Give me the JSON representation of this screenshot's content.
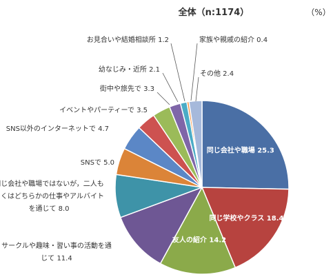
{
  "chart_data": {
    "type": "pie",
    "title": "全体（n:1174）",
    "unit": "（%）",
    "slices": [
      {
        "label": "同じ会社や職場",
        "value": 25.3,
        "color": "#4A6FA5",
        "label_text": "同じ会社や職場 25.3"
      },
      {
        "label": "同じ学校やクラス",
        "value": 18.4,
        "color": "#B7433F",
        "label_text": "同じ学校やクラス 18.4"
      },
      {
        "label": "友人の紹介",
        "value": 14.2,
        "color": "#8BAA4A",
        "label_text": "友人の紹介 14.2"
      },
      {
        "label": "サークルや趣味・習い事の活動を通じて",
        "value": 11.4,
        "color": "#6E5794",
        "label_lines": [
          "サークルや趣味・習い事の活動を通",
          "じて 11.4"
        ]
      },
      {
        "label": "同じ会社や職場ではないが，二人もしくはどちらかの仕事やアルバイトを通じて",
        "value": 8.0,
        "color": "#3E93A8",
        "label_lines": [
          "同じ会社や職場ではないが，二人も",
          "しくはどちらかの仕事やアルバイト",
          "を通じて 8.0"
        ]
      },
      {
        "label": "SNSで",
        "value": 5.0,
        "color": "#DB8438",
        "label_text": "SNSで 5.0"
      },
      {
        "label": "SNS以外のインターネットで",
        "value": 4.7,
        "color": "#5B87C6",
        "label_text": "SNS以外のインターネットで 4.7"
      },
      {
        "label": "イベントやパーティーで",
        "value": 3.5,
        "color": "#CD5250",
        "label_text": "イベントやパーティーで 3.5"
      },
      {
        "label": "街中や旅先で",
        "value": 3.3,
        "color": "#9BBB59",
        "label_text": "街中や旅先で 3.3"
      },
      {
        "label": "幼なじみ・近所",
        "value": 2.1,
        "color": "#7F66A8",
        "label_text": "幼なじみ・近所 2.1"
      },
      {
        "label": "お見合いや結婚相談所",
        "value": 1.2,
        "color": "#4BACC6",
        "label_text": "お見合いや結婚相談所 1.2"
      },
      {
        "label": "家族や親戚の紹介",
        "value": 0.4,
        "color": "#F79646",
        "label_text": "家族や親戚の紹介 0.4"
      },
      {
        "label": "その他",
        "value": 2.4,
        "color": "#A6B9DB",
        "label_text": "その他 2.4"
      }
    ]
  }
}
